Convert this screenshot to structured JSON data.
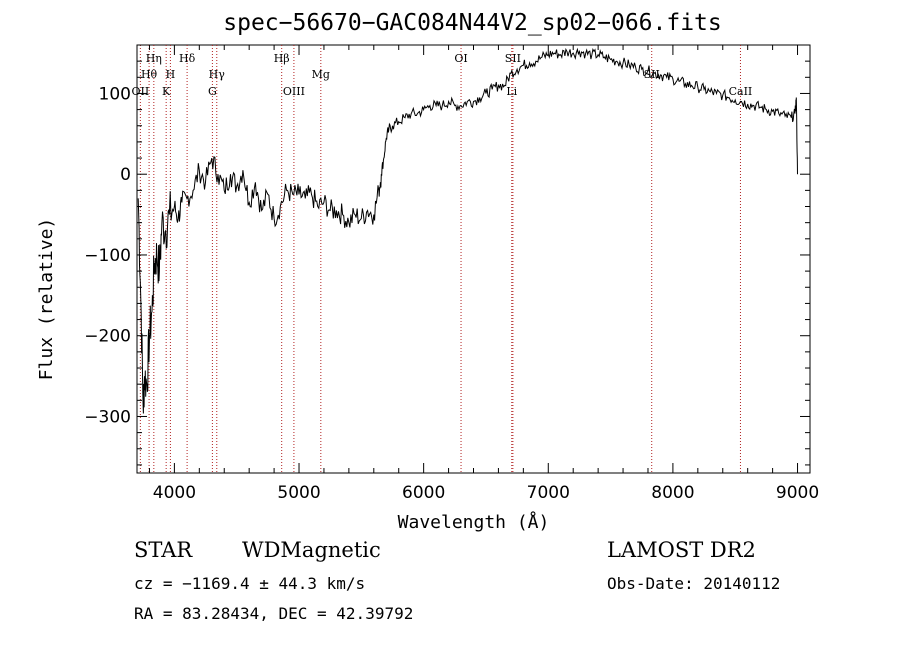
{
  "chart_data": {
    "type": "line",
    "title": "spec−56670−GAC084N44V2_sp02−066.fits",
    "xlabel": "Wavelength (Å)",
    "ylabel": "Flux (relative)",
    "xlim": [
      3700,
      9100
    ],
    "ylim": [
      -370,
      160
    ],
    "x_ticks": [
      4000,
      5000,
      6000,
      7000,
      8000,
      9000
    ],
    "x_tick_labels": [
      "4000",
      "5000",
      "6000",
      "7000",
      "8000",
      "9000"
    ],
    "y_ticks": [
      -300,
      -200,
      -100,
      0,
      100
    ],
    "y_tick_labels": [
      "−300",
      "−200",
      "−100",
      "0",
      "100"
    ],
    "grid": false,
    "legend": "none",
    "series": [
      {
        "x": [
          3710,
          3730,
          3750,
          3760,
          3780,
          3800,
          3820,
          3840,
          3860,
          3880,
          3900,
          3930,
          3960,
          4000,
          4030,
          4060,
          4100,
          4150,
          4200,
          4250,
          4300,
          4350,
          4400,
          4450,
          4500,
          4550,
          4600,
          4650,
          4700,
          4750,
          4800,
          4850,
          4900,
          4950,
          5000,
          5050,
          5100,
          5150,
          5200,
          5250,
          5300,
          5350,
          5400,
          5450,
          5500,
          5550,
          5600,
          5640,
          5660,
          5680,
          5700,
          5720,
          5750,
          5800,
          5850,
          5900,
          5950,
          6000,
          6050,
          6100,
          6150,
          6200,
          6250,
          6300,
          6350,
          6400,
          6450,
          6500,
          6550,
          6600,
          6650,
          6700,
          6750,
          6800,
          6850,
          6900,
          6950,
          7000,
          7050,
          7100,
          7150,
          7200,
          7250,
          7300,
          7350,
          7400,
          7450,
          7500,
          7550,
          7600,
          7650,
          7700,
          7750,
          7800,
          7850,
          7900,
          7950,
          8000,
          8050,
          8100,
          8150,
          8200,
          8250,
          8300,
          8350,
          8400,
          8450,
          8500,
          8550,
          8600,
          8650,
          8700,
          8750,
          8800,
          8850,
          8900,
          8950,
          8980,
          8990,
          9000
        ],
        "y": [
          -30,
          -150,
          -290,
          -250,
          -260,
          -200,
          -170,
          -110,
          -100,
          -120,
          -60,
          -70,
          -50,
          -40,
          -55,
          -35,
          -30,
          -20,
          5,
          -10,
          20,
          0,
          -20,
          0,
          -15,
          5,
          -35,
          -10,
          -45,
          -25,
          -55,
          -40,
          -20,
          -25,
          -25,
          -30,
          -25,
          -40,
          -35,
          -45,
          -45,
          -50,
          -60,
          -50,
          -55,
          -45,
          -50,
          -20,
          0,
          20,
          45,
          55,
          60,
          65,
          70,
          75,
          75,
          80,
          85,
          85,
          85,
          90,
          85,
          85,
          90,
          90,
          95,
          100,
          105,
          110,
          110,
          125,
          130,
          135,
          138,
          140,
          145,
          148,
          150,
          148,
          152,
          150,
          152,
          150,
          148,
          148,
          145,
          142,
          140,
          138,
          135,
          133,
          130,
          128,
          125,
          123,
          120,
          118,
          115,
          112,
          110,
          108,
          105,
          102,
          100,
          98,
          95,
          92,
          90,
          87,
          85,
          83,
          80,
          78,
          75,
          72,
          70,
          75,
          95,
          0
        ]
      }
    ],
    "lines": [
      {
        "label": "Hη",
        "x": 3835,
        "row": 1
      },
      {
        "label": "Hθ",
        "x": 3797,
        "row": 2
      },
      {
        "label": "OII",
        "x": 3727,
        "row": 3
      },
      {
        "label": "H",
        "x": 3968,
        "row": 2
      },
      {
        "label": "K",
        "x": 3934,
        "row": 3
      },
      {
        "label": "Hδ",
        "x": 4102,
        "row": 1
      },
      {
        "label": "Hγ",
        "x": 4340,
        "row": 2
      },
      {
        "label": "G",
        "x": 4305,
        "row": 3
      },
      {
        "label": "Hβ",
        "x": 4861,
        "row": 1
      },
      {
        "label": "OIII",
        "x": 4959,
        "row": 3
      },
      {
        "label": "Mg",
        "x": 5175,
        "row": 2
      },
      {
        "label": "OI",
        "x": 6300,
        "row": 1
      },
      {
        "label": "SII",
        "x": 6716,
        "row": 1
      },
      {
        "label": "Li",
        "x": 6707,
        "row": 3
      },
      {
        "label": "SII",
        "x": 7830,
        "row": 2
      },
      {
        "label": "CaII",
        "x": 8542,
        "row": 3
      }
    ]
  },
  "info": {
    "object_type": "STAR",
    "subclass": "WDMagnetic",
    "survey": "LAMOST DR2",
    "cz": "cz = −1169.4 ± 44.3 km/s",
    "obs_date": "Obs-Date: 20140112",
    "radec": "RA =  83.28434, DEC =  42.39792"
  }
}
